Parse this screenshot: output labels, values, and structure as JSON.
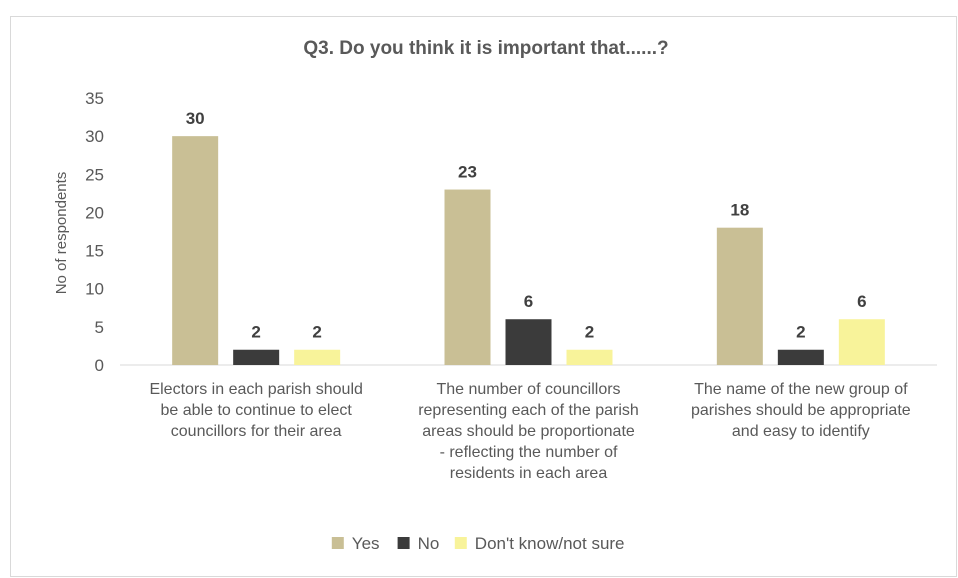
{
  "chart_data": {
    "type": "bar",
    "title": "Q3. Do you think it is important that......?",
    "ylabel": "No of respondents",
    "xlabel": "",
    "ylim": [
      0,
      35
    ],
    "yticks": [
      0,
      5,
      10,
      15,
      20,
      25,
      30,
      35
    ],
    "grid": false,
    "legend": "bottom",
    "categories": [
      [
        "Electors in each parish should",
        "be able to continue to elect",
        "councillors for their area"
      ],
      [
        "The number of councillors",
        "representing each of the parish",
        "areas should be proportionate",
        " -  reflecting the number of",
        "residents in each area"
      ],
      [
        "The name of the new group of",
        "parishes should be appropriate",
        "and easy to identify"
      ]
    ],
    "series": [
      {
        "name": "Yes",
        "color": "#c9bf95",
        "values": [
          30,
          23,
          18
        ]
      },
      {
        "name": "No",
        "color": "#3b3b3b",
        "values": [
          2,
          6,
          2
        ]
      },
      {
        "name": "Don't know/not sure",
        "color": "#f8f39a",
        "values": [
          2,
          2,
          6
        ]
      }
    ]
  }
}
